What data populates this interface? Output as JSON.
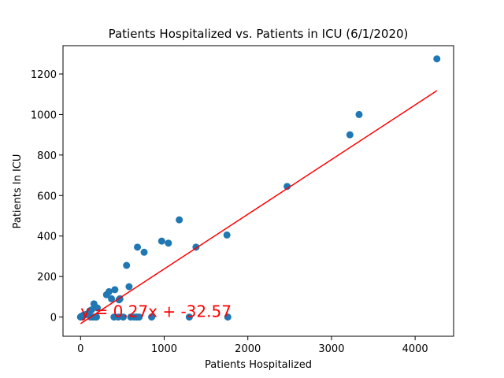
{
  "chart_data": {
    "type": "scatter",
    "title": "Patients Hospitalized vs. Patients in ICU (6/1/2020)",
    "xlabel": "Patients Hospitalized",
    "ylabel": "Patients In ICU",
    "xlim": [
      -210,
      4460
    ],
    "ylim": [
      -95,
      1340
    ],
    "x_ticks": [
      0,
      1000,
      2000,
      3000,
      4000
    ],
    "y_ticks": [
      0,
      200,
      400,
      600,
      800,
      1000,
      1200
    ],
    "grid": false,
    "series": [
      {
        "marker": "circle",
        "color": "#1f77b4",
        "points": [
          [
            0,
            0
          ],
          [
            5,
            2
          ],
          [
            10,
            1
          ],
          [
            20,
            5
          ],
          [
            30,
            8
          ],
          [
            40,
            10
          ],
          [
            60,
            12
          ],
          [
            80,
            15
          ],
          [
            100,
            20
          ],
          [
            110,
            30
          ],
          [
            120,
            0
          ],
          [
            130,
            35
          ],
          [
            150,
            0
          ],
          [
            160,
            65
          ],
          [
            180,
            0
          ],
          [
            190,
            0
          ],
          [
            200,
            45
          ],
          [
            310,
            110
          ],
          [
            340,
            125
          ],
          [
            370,
            90
          ],
          [
            400,
            0
          ],
          [
            410,
            135
          ],
          [
            450,
            0
          ],
          [
            460,
            85
          ],
          [
            470,
            90
          ],
          [
            510,
            0
          ],
          [
            550,
            255
          ],
          [
            580,
            150
          ],
          [
            600,
            0
          ],
          [
            640,
            0
          ],
          [
            670,
            0
          ],
          [
            680,
            345
          ],
          [
            700,
            0
          ],
          [
            760,
            320
          ],
          [
            850,
            0
          ],
          [
            970,
            375
          ],
          [
            1050,
            365
          ],
          [
            1180,
            480
          ],
          [
            1300,
            0
          ],
          [
            1380,
            345
          ],
          [
            1750,
            405
          ],
          [
            1760,
            0
          ],
          [
            2470,
            645
          ],
          [
            3220,
            900
          ],
          [
            3330,
            1000
          ],
          [
            4260,
            1275
          ]
        ]
      }
    ],
    "regression": {
      "slope": 0.27,
      "intercept": -32.57,
      "x_range": [
        0,
        4260
      ],
      "color": "#ff0000",
      "label": "y = 0.27x + -32.57",
      "label_at": [
        0,
        0
      ]
    }
  }
}
